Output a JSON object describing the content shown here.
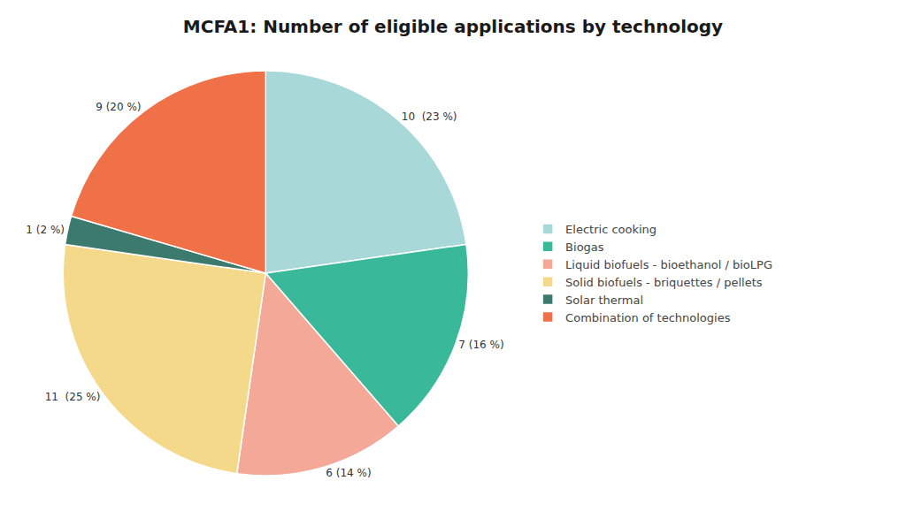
{
  "chart_data": {
    "type": "pie",
    "title": "MCFA1: Number of eligible applications by technology",
    "categories": [
      "Electric cooking",
      "Biogas",
      "Liquid biofuels - bioethanol / bioLPG",
      "Solid biofuels - briquettes / pellets",
      "Solar thermal",
      "Combination of technologies"
    ],
    "values": [
      10,
      7,
      6,
      11,
      1,
      9
    ],
    "value_labels": [
      "10  (23 %)",
      "7 (16 %)",
      "6 (14 %)",
      "11  (25 %)",
      "1 (2 %)",
      "9 (20 %)"
    ],
    "colors": [
      "#a8d8d8",
      "#3ab99a",
      "#f4a898",
      "#f5d98b",
      "#3d7a6e",
      "#f07048"
    ],
    "data_labels": true,
    "legend": "right"
  }
}
